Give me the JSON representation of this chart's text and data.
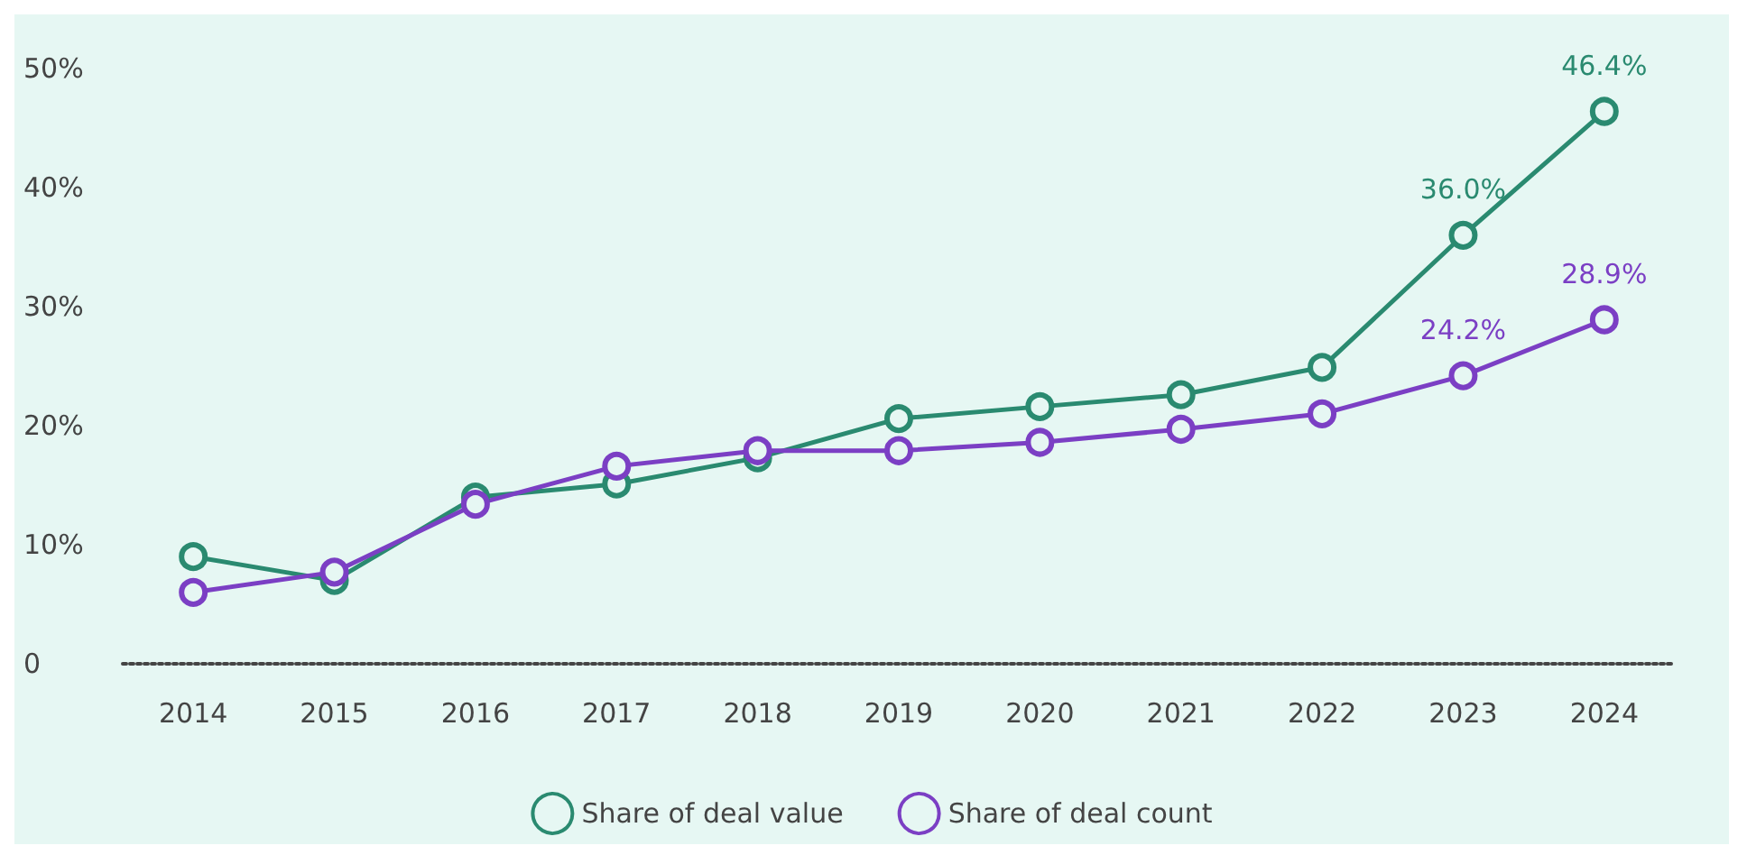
{
  "chart_data": {
    "type": "line",
    "categories": [
      "2014",
      "2015",
      "2016",
      "2017",
      "2018",
      "2019",
      "2020",
      "2021",
      "2022",
      "2023",
      "2024"
    ],
    "series": [
      {
        "name": "Share of deal value",
        "color": "#2a8a70",
        "values": [
          9.0,
          7.0,
          14.0,
          15.1,
          17.3,
          20.6,
          21.6,
          22.6,
          24.9,
          36.0,
          46.4
        ],
        "value_labels": [
          null,
          null,
          null,
          null,
          null,
          null,
          null,
          null,
          null,
          "36.0%",
          "46.4%"
        ]
      },
      {
        "name": "Share of deal count",
        "color": "#7b3fc4",
        "values": [
          6.0,
          7.7,
          13.4,
          16.6,
          17.9,
          17.9,
          18.6,
          19.7,
          21.0,
          24.2,
          28.9
        ],
        "value_labels": [
          null,
          null,
          null,
          null,
          null,
          null,
          null,
          null,
          null,
          "24.2%",
          "28.9%"
        ]
      }
    ],
    "ylim": [
      0,
      50
    ],
    "yticks": [
      {
        "value": 0,
        "label": "0"
      },
      {
        "value": 10,
        "label": "10%"
      },
      {
        "value": 20,
        "label": "20%"
      },
      {
        "value": 30,
        "label": "30%"
      },
      {
        "value": 40,
        "label": "40%"
      },
      {
        "value": 50,
        "label": "50%"
      }
    ],
    "grid": false,
    "legend": "bottom",
    "marker": "circle",
    "line_style": "solid"
  }
}
